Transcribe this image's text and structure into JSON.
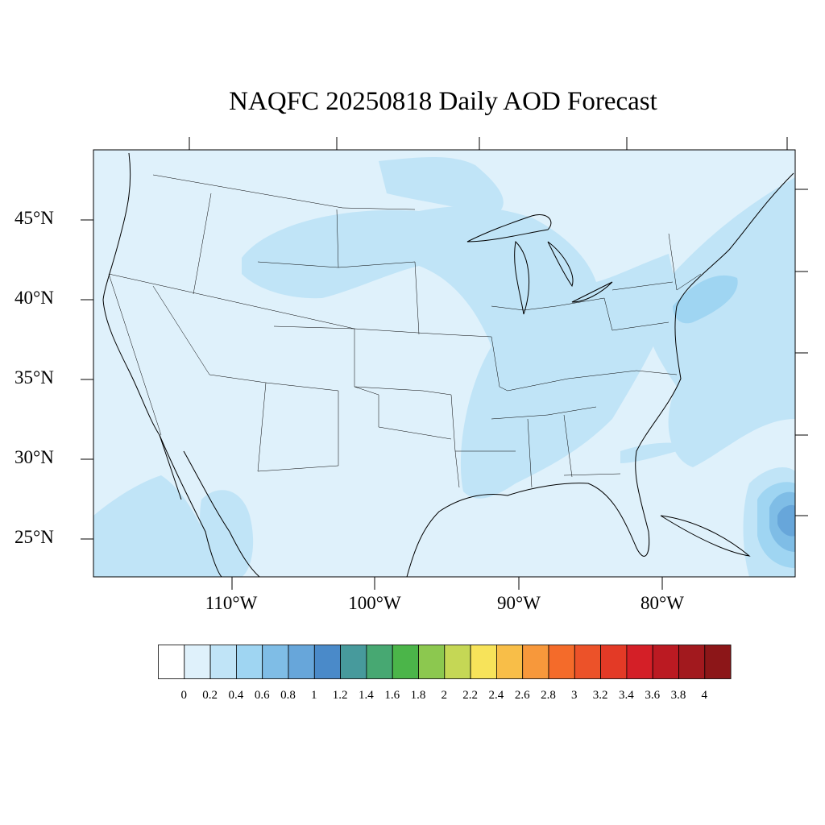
{
  "title": "NAQFC 20250818 Daily AOD Forecast",
  "map": {
    "variable": "AOD",
    "region": "Contiguous United States",
    "lat_labels": [
      "45°N",
      "40°N",
      "35°N",
      "30°N",
      "25°N"
    ],
    "lon_labels": [
      "110°W",
      "100°W",
      "90°W",
      "80°W"
    ],
    "background_color": "#dff1fb",
    "plume_levels": [
      {
        "range": "0.2-0.4",
        "color": "#c0e4f7"
      },
      {
        "range": "0.4-0.6",
        "color": "#9fd5f2"
      },
      {
        "range": "0.6-0.8",
        "color": "#7fbde6"
      },
      {
        "range": "0.8-1",
        "color": "#67a6da"
      }
    ]
  },
  "colorbar": {
    "labels": [
      "0",
      "0.2",
      "0.4",
      "0.6",
      "0.8",
      "1",
      "1.2",
      "1.4",
      "1.6",
      "1.8",
      "2",
      "2.2",
      "2.4",
      "2.6",
      "2.8",
      "3",
      "3.2",
      "3.4",
      "3.6",
      "3.8",
      "4"
    ],
    "colors": [
      "#ffffff",
      "#dff1fb",
      "#c0e4f7",
      "#9fd5f2",
      "#7fbde6",
      "#67a6da",
      "#4a8ac9",
      "#479a9c",
      "#47a872",
      "#4bb549",
      "#8cc84f",
      "#c5d755",
      "#f7e35a",
      "#f8be48",
      "#f7983b",
      "#f46b2a",
      "#ec5229",
      "#e33a26",
      "#d41f27",
      "#bb1a22",
      "#a2191e",
      "#8c1618"
    ]
  }
}
